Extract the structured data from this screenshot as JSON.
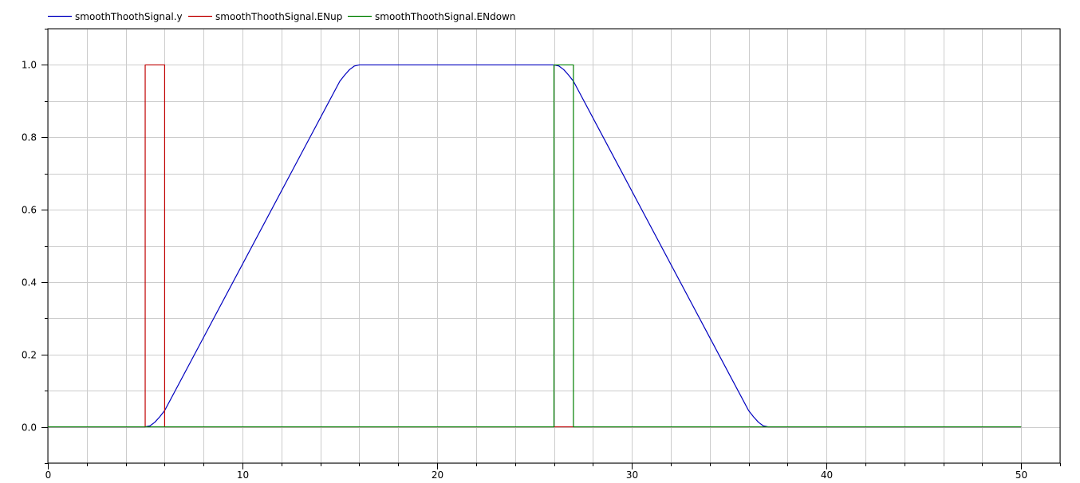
{
  "chart_data": {
    "type": "line",
    "title": "",
    "xlabel": "",
    "ylabel": "",
    "xlim": [
      0,
      52
    ],
    "ylim": [
      -0.1,
      1.1
    ],
    "xticks": [
      0,
      10,
      20,
      30,
      40,
      50
    ],
    "xtick_labels": [
      "0",
      "10",
      "20",
      "30",
      "40",
      "50"
    ],
    "yticks": [
      0.0,
      0.2,
      0.4,
      0.6,
      0.8,
      1.0
    ],
    "ytick_labels": [
      "0.0",
      "0.2",
      "0.4",
      "0.6",
      "0.8",
      "1.0"
    ],
    "grid": true,
    "legend_position": "top-left",
    "series": [
      {
        "name": "smoothThoothSignal.y",
        "color": "#0000bf",
        "x": [
          0,
          5.0,
          5.25,
          5.5,
          5.75,
          6.0,
          15.0,
          15.25,
          15.5,
          15.75,
          16.0,
          26.0,
          26.25,
          26.5,
          26.75,
          27.0,
          36.0,
          36.25,
          36.5,
          36.75,
          37.0,
          50
        ],
        "y": [
          0,
          0,
          0.003,
          0.013,
          0.028,
          0.045,
          0.955,
          0.972,
          0.987,
          0.997,
          1.0,
          1.0,
          0.997,
          0.987,
          0.972,
          0.955,
          0.045,
          0.028,
          0.013,
          0.003,
          0,
          0
        ]
      },
      {
        "name": "smoothThoothSignal.ENup",
        "color": "#bf0000",
        "x": [
          0,
          5.0,
          5.0,
          6.0,
          6.0,
          50
        ],
        "y": [
          0,
          0,
          1,
          1,
          0,
          0
        ]
      },
      {
        "name": "smoothThoothSignal.ENdown",
        "color": "#007f00",
        "x": [
          0,
          26.0,
          26.0,
          27.0,
          27.0,
          50
        ],
        "y": [
          0,
          0,
          1,
          1,
          0,
          0
        ]
      }
    ]
  }
}
